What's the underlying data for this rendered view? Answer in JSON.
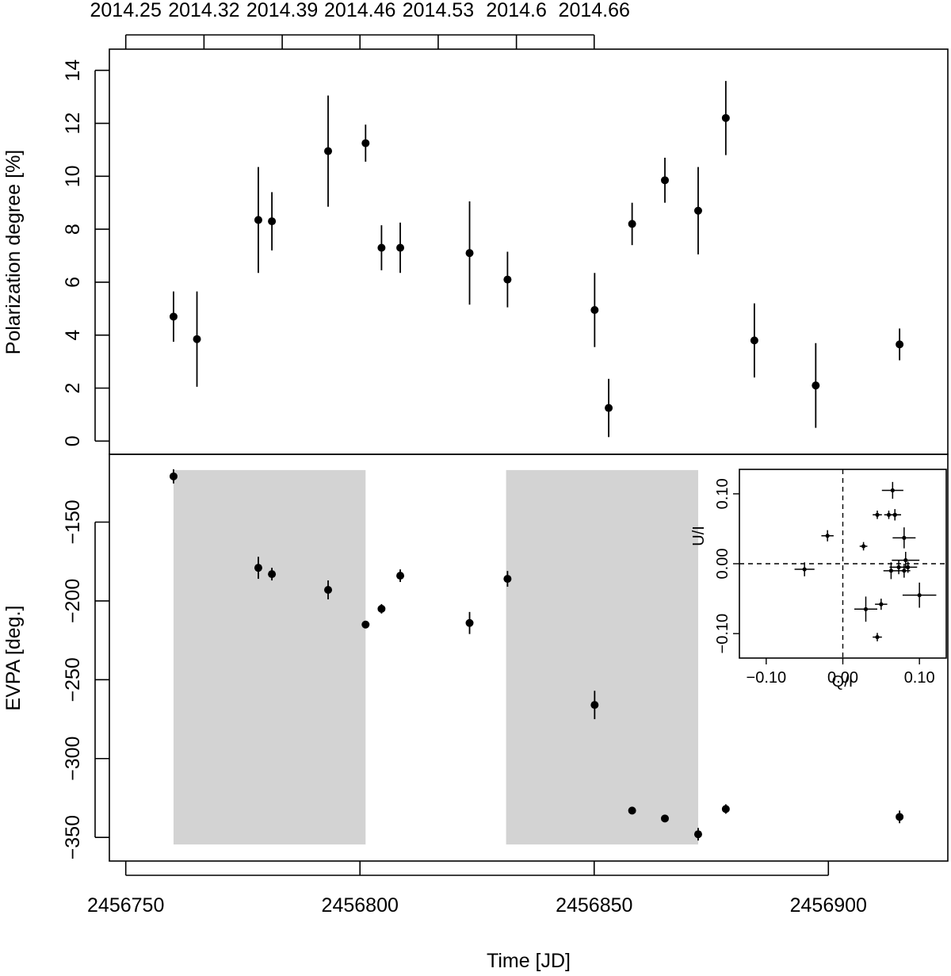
{
  "chart_data": [
    {
      "type": "scatter",
      "panel": "top",
      "title": "",
      "ylabel": "Polarization degree [%]",
      "xlabel": "",
      "xlim": [
        2456746.5,
        2456925.5
      ],
      "ylim": [
        -0.5,
        14.8
      ],
      "yticks": [
        0,
        2,
        4,
        6,
        8,
        10,
        12,
        14
      ],
      "top_axis_ticks": [
        {
          "jd": 2456750.0,
          "label": "2014.25"
        },
        {
          "jd": 2456766.7,
          "label": "2014.32"
        },
        {
          "jd": 2456783.4,
          "label": "2014.39"
        },
        {
          "jd": 2456800.0,
          "label": "2014.46"
        },
        {
          "jd": 2456816.7,
          "label": "2014.53"
        },
        {
          "jd": 2456833.4,
          "label": "2014.6"
        },
        {
          "jd": 2456850.0,
          "label": "2014.66"
        }
      ],
      "series": [
        {
          "name": "Polarization degree",
          "x": [
            2456760.2,
            2456765.2,
            2456778.3,
            2456781.2,
            2456793.2,
            2456801.2,
            2456804.6,
            2456808.6,
            2456823.4,
            2456831.5,
            2456850.1,
            2456853.1,
            2456858.1,
            2456865.1,
            2456872.2,
            2456878.1,
            2456884.2,
            2456897.3,
            2456915.2
          ],
          "y": [
            4.7,
            3.85,
            8.35,
            8.3,
            10.95,
            11.25,
            7.3,
            7.3,
            7.1,
            6.1,
            4.95,
            1.25,
            8.2,
            9.85,
            8.7,
            12.2,
            3.8,
            2.1,
            3.65
          ],
          "yerr": [
            0.95,
            1.8,
            2.0,
            1.1,
            2.1,
            0.7,
            0.85,
            0.95,
            1.95,
            1.05,
            1.4,
            1.1,
            0.8,
            0.85,
            1.65,
            1.4,
            1.4,
            1.6,
            0.6
          ]
        }
      ]
    },
    {
      "type": "scatter",
      "panel": "bottom",
      "title": "",
      "ylabel": "EVPA [deg.]",
      "xlabel": "Time [JD]",
      "xlim": [
        2456746.5,
        2456925.5
      ],
      "ylim": [
        -365,
        -107
      ],
      "yticks": [
        -150,
        -200,
        -250,
        -300,
        -350
      ],
      "xticks": [
        2456750,
        2456800,
        2456850,
        2456900
      ],
      "shaded_intervals": [
        {
          "x": [
            2456760.2,
            2456801.2
          ],
          "y": [
            -354.5,
            -117
          ]
        },
        {
          "x": [
            2456831.2,
            2456872.2
          ],
          "y": [
            -354.5,
            -117
          ]
        }
      ],
      "series": [
        {
          "name": "EVPA",
          "x": [
            2456760.2,
            2456778.3,
            2456781.2,
            2456793.2,
            2456801.2,
            2456804.6,
            2456808.6,
            2456823.4,
            2456831.5,
            2456850.1,
            2456858.1,
            2456865.1,
            2456872.2,
            2456878.1,
            2456915.2
          ],
          "y": [
            -121,
            -179,
            -183,
            -193,
            -215,
            -205,
            -184,
            -214,
            -186,
            -266,
            -333,
            -338,
            -348,
            -332,
            -337
          ],
          "yerr": [
            4.5,
            7,
            4,
            6,
            2,
            3,
            4,
            7,
            5,
            9,
            2,
            2,
            4,
            3,
            4
          ]
        }
      ]
    },
    {
      "type": "scatter",
      "panel": "inset",
      "title": "",
      "xlabel": "Q/I",
      "ylabel": "U/I",
      "xlim": [
        -0.135,
        0.135
      ],
      "ylim": [
        -0.135,
        0.135
      ],
      "xticks": [
        -0.1,
        0.0,
        0.1
      ],
      "xtick_labels": [
        "−0.10",
        "0.00",
        "0.10"
      ],
      "yticks": [
        -0.1,
        0.0,
        0.1
      ],
      "ytick_labels": [
        "−0.10",
        "0.00",
        "0.10"
      ],
      "reference_lines": {
        "x": 0.0,
        "y": 0.0,
        "style": "dashed"
      },
      "series": [
        {
          "name": "Q/I vs U/I",
          "x": [
            -0.05,
            -0.02,
            0.027,
            0.03,
            0.045,
            0.05,
            0.06,
            0.063,
            0.065,
            0.068,
            0.073,
            0.08,
            0.08,
            0.082,
            0.085,
            0.1,
            0.045,
            0.068
          ],
          "y": [
            -0.008,
            0.04,
            0.025,
            -0.065,
            -0.105,
            -0.058,
            0.07,
            -0.01,
            0.105,
            0.07,
            -0.005,
            -0.01,
            0.037,
            0.005,
            -0.005,
            -0.045,
            0.07,
            0.07
          ],
          "xerr": [
            0.013,
            0.008,
            0.005,
            0.015,
            0.006,
            0.008,
            0.006,
            0.01,
            0.014,
            0.008,
            0.012,
            0.008,
            0.015,
            0.018,
            0.012,
            0.022,
            0.006,
            0.008
          ],
          "yerr": [
            0.01,
            0.008,
            0.006,
            0.018,
            0.006,
            0.008,
            0.006,
            0.012,
            0.012,
            0.008,
            0.01,
            0.01,
            0.015,
            0.012,
            0.008,
            0.018,
            0.006,
            0.008
          ]
        }
      ]
    }
  ]
}
